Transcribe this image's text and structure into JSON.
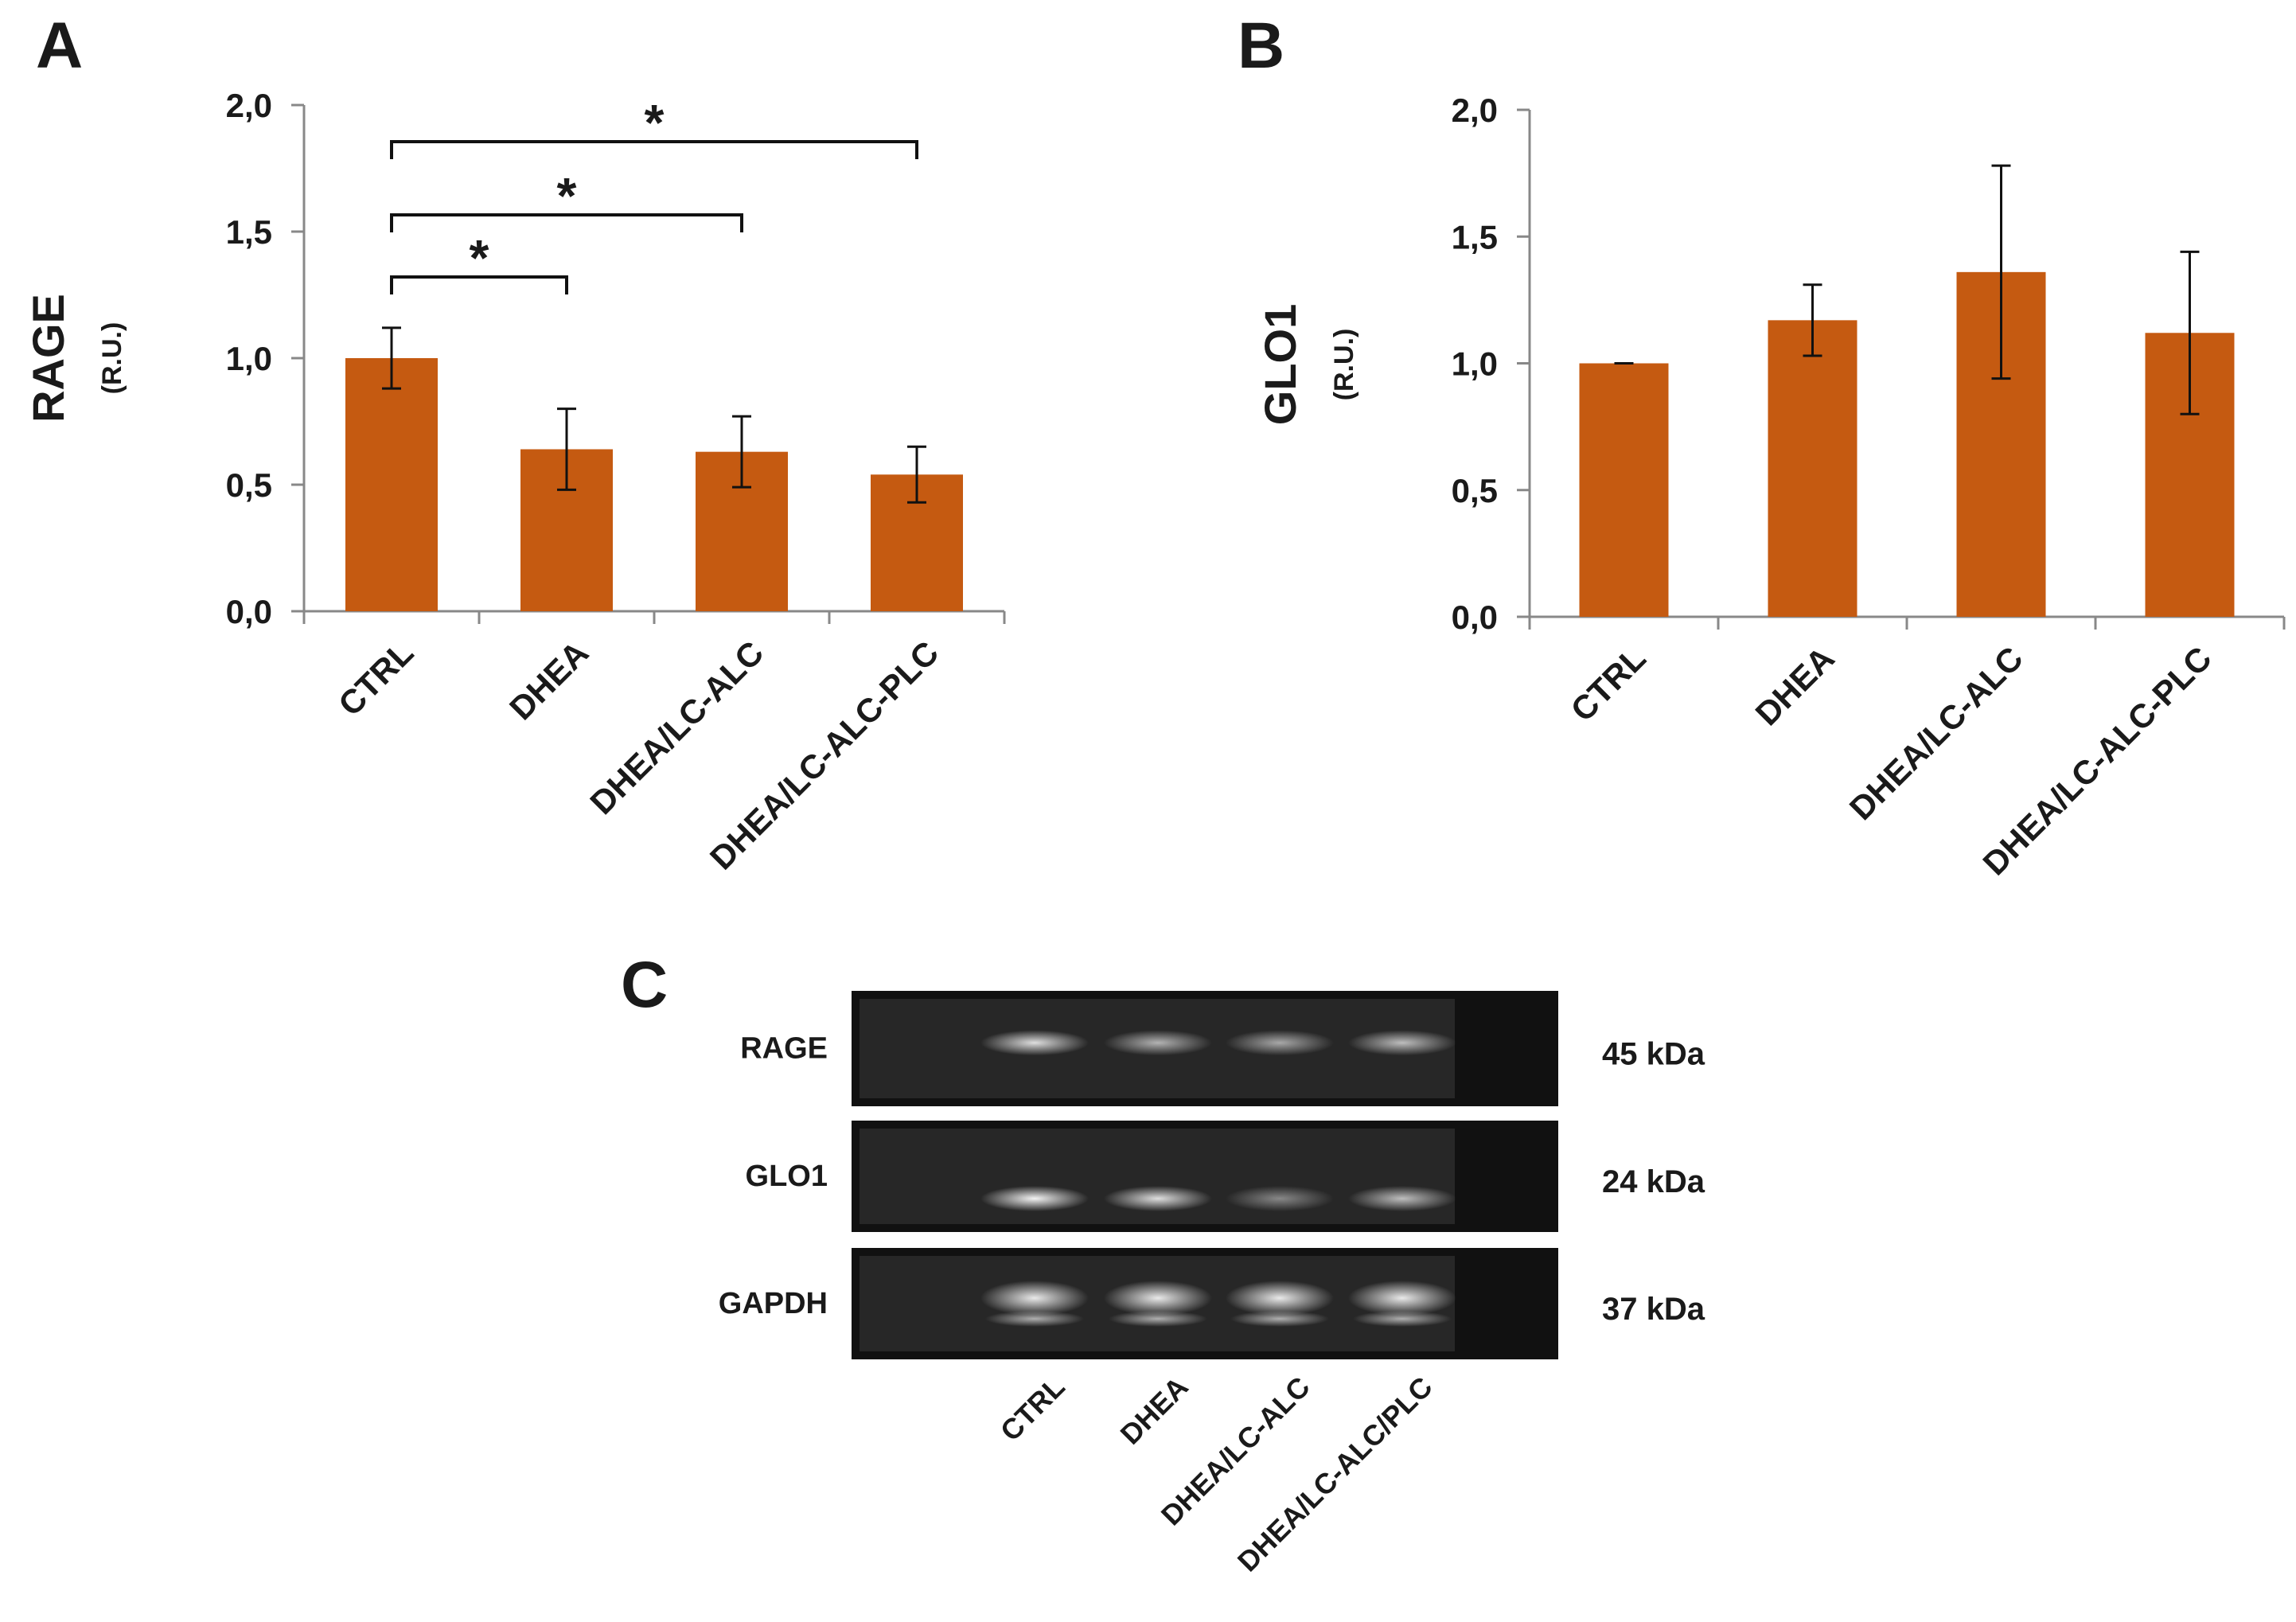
{
  "figure": {
    "panel_a": "A",
    "panel_b": "B",
    "panel_c": "C"
  },
  "colors": {
    "bar": "#C55A11",
    "axis": "#888888",
    "blot_bg": "#111111"
  },
  "chart_data": [
    {
      "type": "bar",
      "panel": "A",
      "title": "",
      "xlabel": "",
      "ylabel": "RAGE",
      "ylabel_unit": "(R.U.)",
      "categories": [
        "CTRL",
        "DHEA",
        "DHEA/LC-ALC",
        "DHEA/LC-ALC-PLC"
      ],
      "values": [
        1.0,
        0.64,
        0.63,
        0.54
      ],
      "errors": [
        0.12,
        0.16,
        0.14,
        0.11
      ],
      "ylim": [
        0,
        2
      ],
      "yticks": [
        "0,0",
        "0,5",
        "1,0",
        "1,5",
        "2,0"
      ],
      "grid": false,
      "significance": [
        {
          "from": 0,
          "to": 1,
          "label": "*"
        },
        {
          "from": 0,
          "to": 2,
          "label": "*"
        },
        {
          "from": 0,
          "to": 3,
          "label": "*"
        }
      ]
    },
    {
      "type": "bar",
      "panel": "B",
      "title": "",
      "xlabel": "",
      "ylabel": "GLO1",
      "ylabel_unit": "(R.U.)",
      "categories": [
        "CTRL",
        "DHEA",
        "DHEA/LC-ALC",
        "DHEA/LC-ALC-PLC"
      ],
      "values": [
        1.0,
        1.17,
        1.36,
        1.12
      ],
      "errors": [
        0.0,
        0.14,
        0.42,
        0.32
      ],
      "ylim": [
        0,
        2
      ],
      "yticks": [
        "0,0",
        "0,5",
        "1,0",
        "1,5",
        "2,0"
      ],
      "grid": false,
      "significance": []
    }
  ],
  "blot": {
    "rows": [
      {
        "label": "RAGE",
        "kda": "45 kDa",
        "intensity": [
          0.85,
          0.65,
          0.6,
          0.7
        ]
      },
      {
        "label": "GLO1",
        "kda": "24 kDa",
        "intensity": [
          0.95,
          0.85,
          0.45,
          0.7
        ]
      },
      {
        "label": "GAPDH",
        "kda": "37 kDa",
        "intensity": [
          0.9,
          0.9,
          0.9,
          0.9
        ]
      }
    ],
    "lanes": [
      "CTRL",
      "DHEA",
      "DHEA/LC-ALC",
      "DHEA/LC-ALC/PLC"
    ]
  }
}
